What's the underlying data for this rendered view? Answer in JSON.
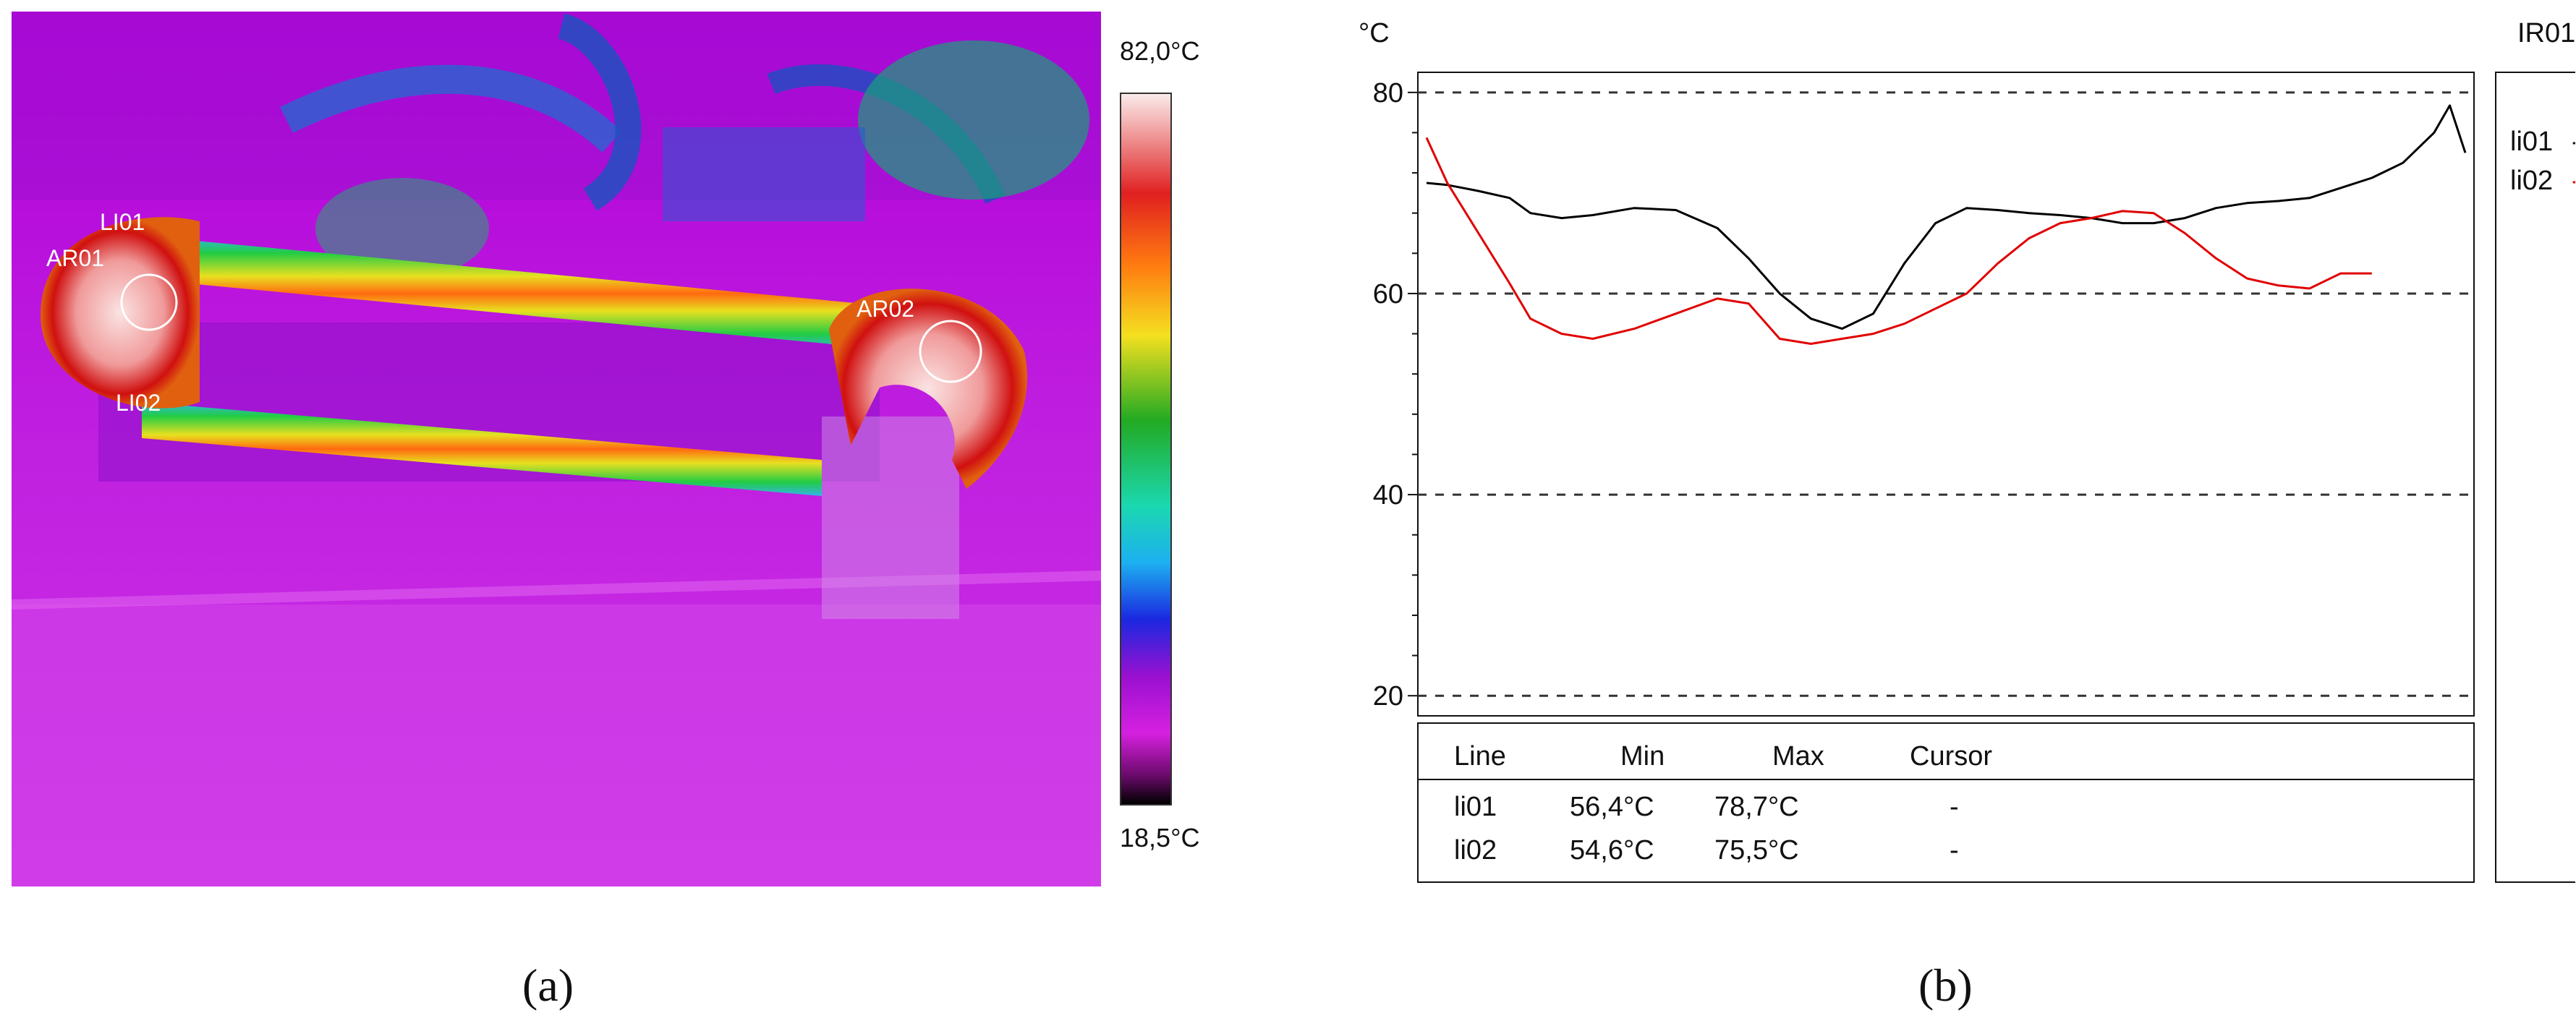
{
  "panel_a": {
    "caption": "(a)",
    "scale_max": "82,0°C",
    "scale_min": "18,5°C",
    "annotations": [
      "LI01",
      "AR01",
      "LI02",
      "AR02"
    ]
  },
  "panel_b": {
    "caption": "(b)",
    "unit_label": "°C",
    "window_id": "IR01",
    "legend": [
      {
        "name": "li01",
        "marker": "-",
        "color": "#000000"
      },
      {
        "name": "li02",
        "marker": "-",
        "color": "#e00000"
      }
    ],
    "table": {
      "headers": [
        "Line",
        "Min",
        "Max",
        "Cursor"
      ],
      "rows": [
        [
          "li01",
          "56,4°C",
          "78,7°C",
          "-"
        ],
        [
          "li02",
          "54,6°C",
          "75,5°C",
          "-"
        ]
      ]
    }
  },
  "chart_data": {
    "type": "line",
    "title": "IR01",
    "xlabel": "",
    "ylabel": "°C",
    "ylim": [
      18,
      82
    ],
    "yticks": [
      20,
      40,
      60,
      80
    ],
    "grid": "dashed horizontal at 20, 40, 60, 80",
    "x": [
      0,
      0.02,
      0.05,
      0.08,
      0.1,
      0.13,
      0.16,
      0.2,
      0.24,
      0.28,
      0.31,
      0.34,
      0.37,
      0.4,
      0.43,
      0.46,
      0.49,
      0.52,
      0.55,
      0.58,
      0.61,
      0.64,
      0.67,
      0.7,
      0.73,
      0.76,
      0.79,
      0.82,
      0.85,
      0.88,
      0.91,
      0.94,
      0.97,
      0.985,
      1.0
    ],
    "series": [
      {
        "name": "li01",
        "color": "#000000",
        "values": [
          71,
          70.8,
          70.2,
          69.5,
          68,
          67.5,
          67.8,
          68.5,
          68.3,
          66.5,
          63.5,
          60,
          57.5,
          56.5,
          58,
          63,
          67,
          68.5,
          68.3,
          68,
          67.8,
          67.5,
          67,
          67,
          67.5,
          68.5,
          69,
          69.2,
          69.5,
          70.5,
          71.5,
          73,
          76,
          78.7,
          74
        ]
      },
      {
        "name": "li02",
        "color": "#e00000",
        "values": [
          75.5,
          71,
          66,
          61,
          57.5,
          56,
          55.5,
          56.5,
          58,
          59.5,
          59,
          55.5,
          55,
          55.5,
          56,
          57,
          58.5,
          60,
          63,
          65.5,
          67,
          67.5,
          68.2,
          68,
          66,
          63.5,
          61.5,
          60.8,
          60.5,
          62,
          62,
          null,
          null,
          null,
          null
        ]
      }
    ]
  }
}
